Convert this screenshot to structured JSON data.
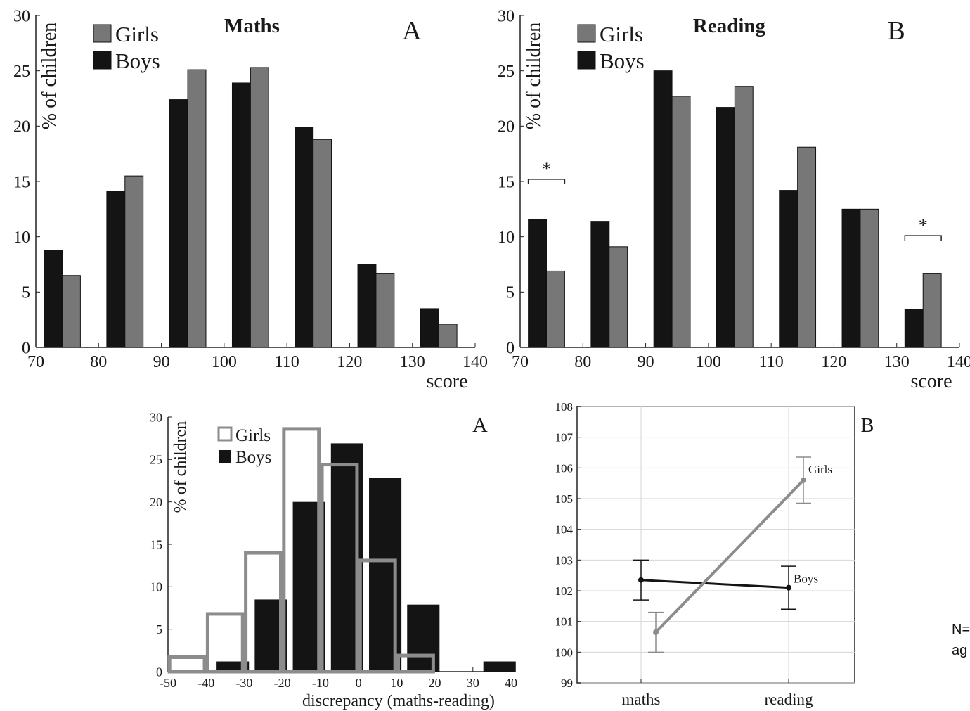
{
  "side_note": [
    "N=",
    "ag"
  ],
  "chart_data": [
    {
      "id": "maths-histogram",
      "type": "bar",
      "title": "Maths",
      "panel_letter": "A",
      "ylabel": "% of children",
      "xlabel": "score",
      "ylim": [
        0,
        30
      ],
      "yticks": [
        0,
        5,
        10,
        15,
        20,
        25,
        30
      ],
      "xlim": [
        70,
        140
      ],
      "xticks": [
        70,
        80,
        90,
        100,
        110,
        120,
        130,
        140
      ],
      "legend_position": "top-left",
      "grid": false,
      "bin_starts": [
        70,
        80,
        90,
        100,
        110,
        120,
        130
      ],
      "bin_width": 10,
      "series": [
        {
          "name": "Boys",
          "color": "#141414",
          "values": [
            8.8,
            14.1,
            22.4,
            23.9,
            19.9,
            7.5,
            3.5
          ]
        },
        {
          "name": "Girls",
          "color": "#777777",
          "values": [
            6.5,
            15.5,
            25.1,
            25.3,
            18.8,
            6.7,
            2.1
          ]
        }
      ]
    },
    {
      "id": "reading-histogram",
      "type": "bar",
      "title": "Reading",
      "panel_letter": "B",
      "ylabel": "% of children",
      "xlabel": "score",
      "ylim": [
        0,
        30
      ],
      "yticks": [
        0,
        5,
        10,
        15,
        20,
        25,
        30
      ],
      "xlim": [
        70,
        140
      ],
      "xticks": [
        70,
        80,
        90,
        100,
        110,
        120,
        130,
        140
      ],
      "legend_position": "top-left",
      "grid": false,
      "bin_starts": [
        70,
        80,
        90,
        100,
        110,
        120,
        130
      ],
      "bin_width": 10,
      "series": [
        {
          "name": "Boys",
          "color": "#141414",
          "values": [
            11.6,
            11.4,
            25.0,
            21.7,
            14.2,
            12.5,
            3.4
          ]
        },
        {
          "name": "Girls",
          "color": "#777777",
          "values": [
            6.9,
            9.1,
            22.7,
            23.6,
            18.1,
            12.5,
            6.7
          ]
        }
      ],
      "annotations": [
        {
          "text": "*",
          "bin": 70,
          "y": 15.2
        },
        {
          "text": "*",
          "bin": 130,
          "y": 10.1
        }
      ]
    },
    {
      "id": "discrepancy-histogram",
      "type": "bar",
      "panel_letter": "A",
      "ylabel": "% of children",
      "xlabel": "discrepancy (maths-reading)",
      "ylim": [
        0,
        30
      ],
      "yticks": [
        0,
        5,
        10,
        15,
        20,
        25,
        30
      ],
      "xlim": [
        -50,
        40
      ],
      "xticks": [
        -50,
        -40,
        -30,
        -20,
        -10,
        0,
        10,
        20,
        30,
        40
      ],
      "legend_position": "top-left",
      "grid": false,
      "series": [
        {
          "name": "Girls",
          "style": "outline",
          "color": "#8c8c8c",
          "x": [
            -45,
            -35,
            -25,
            -15,
            -5,
            5,
            15,
            25
          ],
          "values": [
            1.7,
            6.8,
            14.0,
            28.6,
            24.4,
            13.1,
            1.9,
            0
          ]
        },
        {
          "name": "Boys",
          "style": "filled",
          "color": "#141414",
          "x": [
            -33,
            -23,
            -13,
            -3,
            7,
            17,
            27,
            37
          ],
          "values": [
            1.2,
            8.5,
            20.0,
            26.9,
            22.8,
            7.9,
            0,
            1.2
          ]
        }
      ]
    },
    {
      "id": "interaction-plot",
      "type": "line",
      "panel_letter": "B",
      "categories": [
        "maths",
        "reading"
      ],
      "ylim": [
        99,
        108
      ],
      "yticks": [
        99,
        100,
        101,
        102,
        103,
        104,
        105,
        106,
        107,
        108
      ],
      "grid": true,
      "series": [
        {
          "name": "Boys",
          "color": "#141414",
          "x_offset": 0,
          "values": [
            102.35,
            102.1
          ],
          "errors": [
            0.65,
            0.7
          ]
        },
        {
          "name": "Girls",
          "color": "#8c8c8c",
          "x_offset": 0.1,
          "values": [
            100.65,
            105.6
          ],
          "errors": [
            0.65,
            0.75
          ]
        }
      ]
    }
  ]
}
